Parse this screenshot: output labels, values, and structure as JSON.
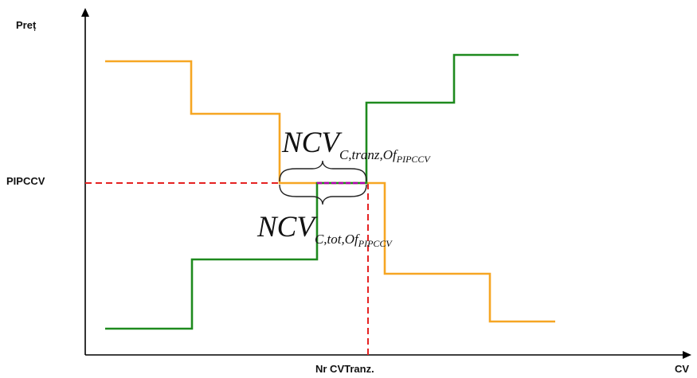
{
  "axes": {
    "y_label": "Preț",
    "x_label": "CV",
    "price_level_label": "PIPCCV",
    "quantity_label": "Nr CVTranz."
  },
  "annotations": {
    "tranz": {
      "main": "NCV",
      "sub": "C,tranz,Of",
      "subsub": "PIPCCV"
    },
    "tot": {
      "main": "NCV",
      "sub": "C,tot,Of",
      "subsub": "PIPCCV"
    }
  },
  "colors": {
    "supply_curve": "#f6a623",
    "demand_curve": "#1e8a1e",
    "reference_lines": "#e52222",
    "overlap_segment": "#b000b0",
    "axes": "#000000"
  }
}
